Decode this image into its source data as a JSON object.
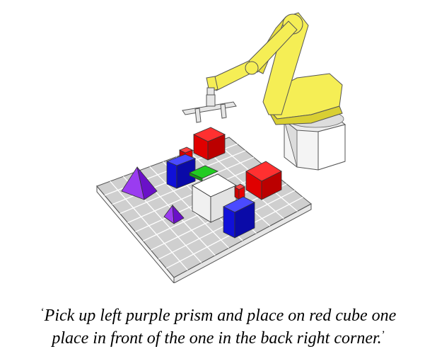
{
  "scene": {
    "description_label": "Robot arm above a grid table with blocks",
    "colors": {
      "robot_yellow": "#f5ee55",
      "robot_shade": "#d9cf33",
      "red": "#e80000",
      "blue": "#1010e6",
      "green": "#22cc22",
      "purple": "#8a2be2",
      "white_box": "#f2f2f2",
      "grid": "#c8c8c8"
    }
  },
  "caption": {
    "open_quote": "‘",
    "line1": "Pick up left purple prism and place on red cube one",
    "line2": "place in front of the one in the back right corner.",
    "close_quote": "’"
  }
}
